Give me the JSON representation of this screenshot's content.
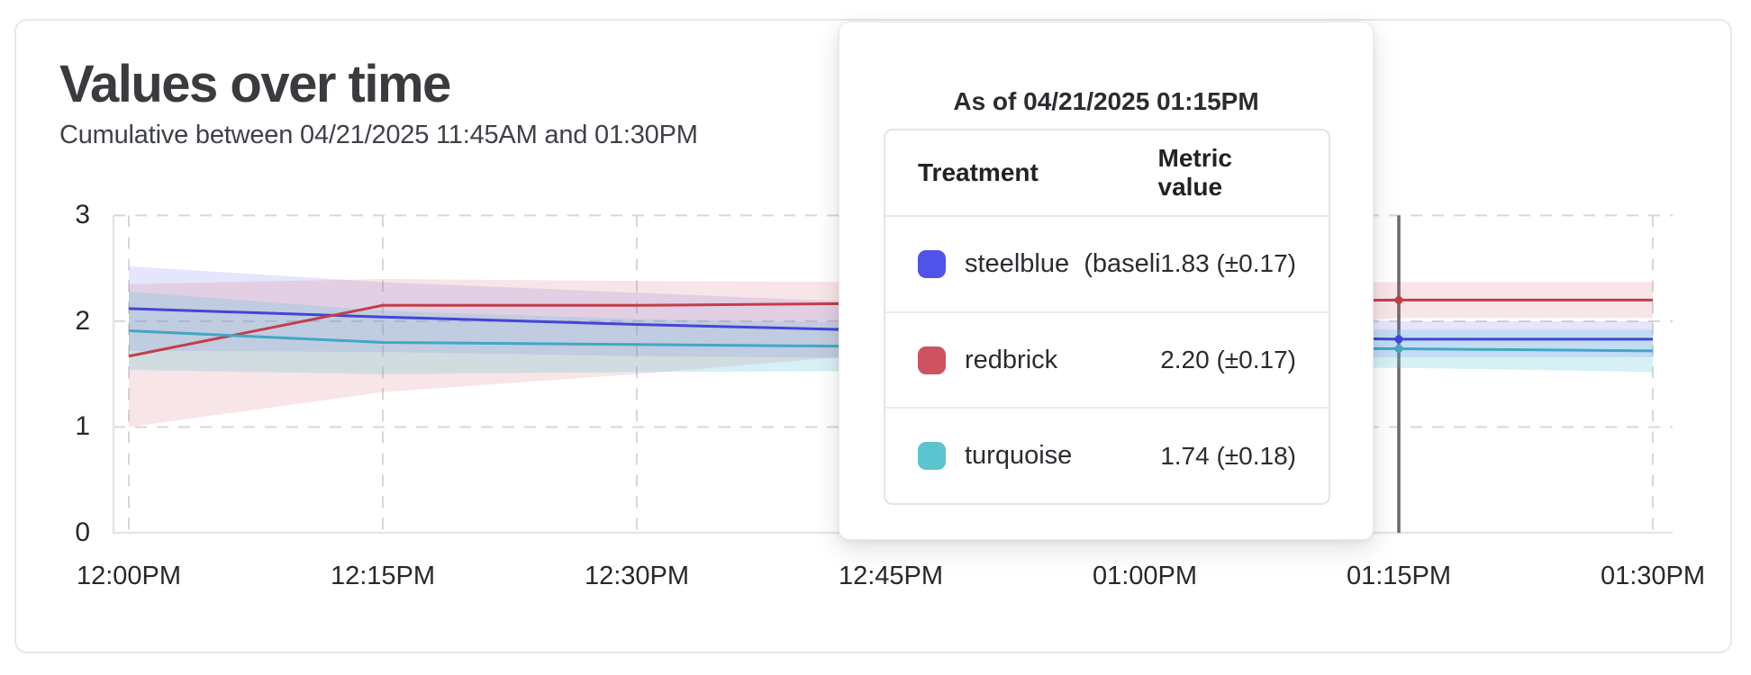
{
  "page": {
    "title": "Values over time",
    "subtitle": "Cumulative between 04/21/2025 11:45AM and 01:30PM"
  },
  "tooltip": {
    "title": "As of 04/21/2025 01:15PM",
    "col_treatment": "Treatment",
    "col_metric": "Metric value",
    "rows": [
      {
        "label": "steelblue  (baseli",
        "value": "1.83 (±0.17)",
        "swatch_color": "#5152e8"
      },
      {
        "label": "redbrick",
        "value": "2.20 (±0.17)",
        "swatch_color": "#cd5360"
      },
      {
        "label": "turquoise",
        "value": "1.74 (±0.18)",
        "swatch_color": "#5bc4cf"
      }
    ]
  },
  "chart_data": {
    "type": "line",
    "title": "Values over time",
    "subtitle": "Cumulative between 04/21/2025 11:45AM and 01:30PM",
    "x": [
      "12:00PM",
      "12:15PM",
      "12:30PM",
      "12:45PM",
      "01:00PM",
      "01:15PM",
      "01:30PM"
    ],
    "y_ticks": [
      3,
      2,
      1,
      0
    ],
    "ylim": [
      0,
      3
    ],
    "grid": "dashed",
    "legend": "none",
    "hover_index": 5,
    "hover_time": "01:15PM",
    "hover_line_color": "#686868",
    "series": [
      {
        "name": "steelblue (baseline)",
        "line_color": "#4345d8",
        "band_color": "rgba(81,82,232,0.15)",
        "values": [
          2.12,
          2.04,
          1.97,
          1.91,
          1.86,
          1.83,
          1.83
        ],
        "band_hi": [
          2.52,
          2.37,
          2.27,
          2.17,
          2.08,
          2.0,
          2.0
        ],
        "band_lo": [
          1.72,
          1.71,
          1.67,
          1.65,
          1.64,
          1.66,
          1.66
        ]
      },
      {
        "name": "redbrick",
        "line_color": "#c23e4a",
        "band_color": "rgba(205,83,96,0.15)",
        "values": [
          1.67,
          2.15,
          2.15,
          2.17,
          2.18,
          2.2,
          2.2
        ],
        "band_hi": [
          2.35,
          2.4,
          2.38,
          2.37,
          2.37,
          2.37,
          2.37
        ],
        "band_lo": [
          1.0,
          1.33,
          1.5,
          1.7,
          1.88,
          2.03,
          2.03
        ]
      },
      {
        "name": "turquoise",
        "line_color": "#41a7c4",
        "band_color": "rgba(91,196,207,0.25)",
        "values": [
          1.91,
          1.8,
          1.78,
          1.76,
          1.75,
          1.74,
          1.72
        ],
        "band_hi": [
          2.28,
          2.1,
          2.02,
          1.98,
          1.95,
          1.92,
          1.92
        ],
        "band_lo": [
          1.54,
          1.5,
          1.52,
          1.53,
          1.55,
          1.56,
          1.52
        ]
      }
    ]
  }
}
